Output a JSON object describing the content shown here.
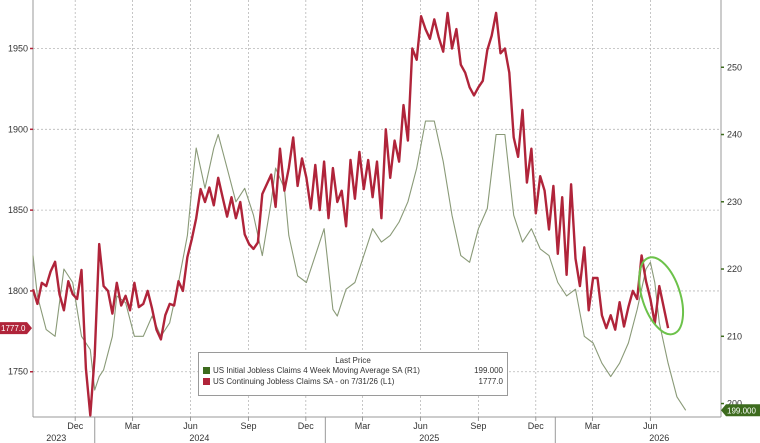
{
  "legend": {
    "title": "Last Price",
    "items": [
      {
        "label": "US Initial Jobless Claims 4 Week Moving Average SA  (R1)",
        "value": "199.000",
        "color": "#3d6b1e"
      },
      {
        "label": "US Continuing Jobless Claims SA -  on 7/31/26  (L1)",
        "value": "1777.0",
        "color": "#b0243a"
      }
    ]
  },
  "last_labels": {
    "left": "1777.0",
    "right": "199.000"
  },
  "chart_data": {
    "type": "line",
    "x_range": [
      "2023-09-25",
      "2026-09-21"
    ],
    "y_left": {
      "min": 1722,
      "max": 1980,
      "ticks": [
        1750,
        1800,
        1850,
        1900,
        1950
      ]
    },
    "y_right": {
      "min": 198,
      "max": 260,
      "ticks": [
        200,
        210,
        220,
        230,
        240,
        250
      ]
    },
    "x_ticks": [
      {
        "date": "2023-12-01",
        "label": "Dec"
      },
      {
        "date": "2024-03-01",
        "label": "Mar"
      },
      {
        "date": "2024-06-01",
        "label": "Jun"
      },
      {
        "date": "2024-09-01",
        "label": "Sep"
      },
      {
        "date": "2024-12-01",
        "label": "Dec"
      },
      {
        "date": "2025-03-01",
        "label": "Mar"
      },
      {
        "date": "2025-06-01",
        "label": "Jun"
      },
      {
        "date": "2025-09-01",
        "label": "Sep"
      },
      {
        "date": "2025-12-01",
        "label": "Dec"
      },
      {
        "date": "2026-03-01",
        "label": "Mar"
      },
      {
        "date": "2026-06-01",
        "label": "Jun"
      }
    ],
    "year_labels": [
      {
        "date": "2023-11-01",
        "label": "2023"
      },
      {
        "date": "2024-06-15",
        "label": "2024"
      },
      {
        "date": "2025-06-15",
        "label": "2025"
      },
      {
        "date": "2026-06-15",
        "label": "2026"
      }
    ],
    "series": [
      {
        "name": "US Continuing Jobless Claims SA",
        "axis": "left",
        "color": "#b0243a",
        "points": [
          [
            "2023-09-25",
            1801
          ],
          [
            "2023-10-02",
            1792
          ],
          [
            "2023-10-09",
            1805
          ],
          [
            "2023-10-16",
            1803
          ],
          [
            "2023-10-23",
            1812
          ],
          [
            "2023-10-30",
            1818
          ],
          [
            "2023-11-06",
            1798
          ],
          [
            "2023-11-13",
            1788
          ],
          [
            "2023-11-20",
            1806
          ],
          [
            "2023-11-27",
            1798
          ],
          [
            "2023-12-04",
            1795
          ],
          [
            "2023-12-11",
            1813
          ],
          [
            "2023-12-18",
            1752
          ],
          [
            "2023-12-25",
            1723
          ],
          [
            "2024-01-01",
            1760
          ],
          [
            "2024-01-08",
            1829
          ],
          [
            "2024-01-15",
            1803
          ],
          [
            "2024-01-22",
            1800
          ],
          [
            "2024-01-29",
            1786
          ],
          [
            "2024-02-05",
            1805
          ],
          [
            "2024-02-12",
            1791
          ],
          [
            "2024-02-19",
            1797
          ],
          [
            "2024-02-26",
            1788
          ],
          [
            "2024-03-04",
            1805
          ],
          [
            "2024-03-11",
            1790
          ],
          [
            "2024-03-18",
            1792
          ],
          [
            "2024-03-25",
            1800
          ],
          [
            "2024-04-01",
            1789
          ],
          [
            "2024-04-08",
            1776
          ],
          [
            "2024-04-15",
            1770
          ],
          [
            "2024-04-22",
            1785
          ],
          [
            "2024-04-29",
            1792
          ],
          [
            "2024-05-06",
            1791
          ],
          [
            "2024-05-13",
            1806
          ],
          [
            "2024-05-20",
            1800
          ],
          [
            "2024-05-27",
            1821
          ],
          [
            "2024-06-03",
            1832
          ],
          [
            "2024-06-10",
            1845
          ],
          [
            "2024-06-17",
            1863
          ],
          [
            "2024-06-24",
            1855
          ],
          [
            "2024-07-01",
            1864
          ],
          [
            "2024-07-08",
            1853
          ],
          [
            "2024-07-15",
            1870
          ],
          [
            "2024-07-22",
            1858
          ],
          [
            "2024-07-29",
            1846
          ],
          [
            "2024-08-05",
            1858
          ],
          [
            "2024-08-12",
            1845
          ],
          [
            "2024-08-19",
            1855
          ],
          [
            "2024-08-26",
            1835
          ],
          [
            "2024-09-02",
            1829
          ],
          [
            "2024-09-09",
            1826
          ],
          [
            "2024-09-16",
            1830
          ],
          [
            "2024-09-23",
            1860
          ],
          [
            "2024-10-07",
            1872
          ],
          [
            "2024-10-14",
            1852
          ],
          [
            "2024-10-21",
            1888
          ],
          [
            "2024-10-28",
            1862
          ],
          [
            "2024-11-04",
            1876
          ],
          [
            "2024-11-11",
            1895
          ],
          [
            "2024-11-18",
            1865
          ],
          [
            "2024-11-25",
            1882
          ],
          [
            "2024-12-02",
            1870
          ],
          [
            "2024-12-09",
            1851
          ],
          [
            "2024-12-16",
            1878
          ],
          [
            "2024-12-23",
            1850
          ],
          [
            "2024-12-30",
            1880
          ],
          [
            "2025-01-06",
            1845
          ],
          [
            "2025-01-13",
            1876
          ],
          [
            "2025-01-20",
            1855
          ],
          [
            "2025-01-27",
            1862
          ],
          [
            "2025-02-03",
            1840
          ],
          [
            "2025-02-10",
            1881
          ],
          [
            "2025-02-17",
            1857
          ],
          [
            "2025-02-24",
            1886
          ],
          [
            "2025-03-03",
            1863
          ],
          [
            "2025-03-10",
            1881
          ],
          [
            "2025-03-17",
            1858
          ],
          [
            "2025-03-24",
            1880
          ],
          [
            "2025-03-31",
            1845
          ],
          [
            "2025-04-07",
            1900
          ],
          [
            "2025-04-14",
            1870
          ],
          [
            "2025-04-21",
            1893
          ],
          [
            "2025-04-28",
            1880
          ],
          [
            "2025-05-05",
            1915
          ],
          [
            "2025-05-12",
            1893
          ],
          [
            "2025-05-19",
            1950
          ],
          [
            "2025-05-26",
            1943
          ],
          [
            "2025-06-02",
            1970
          ],
          [
            "2025-06-09",
            1962
          ],
          [
            "2025-06-16",
            1956
          ],
          [
            "2025-06-23",
            1968
          ],
          [
            "2025-06-30",
            1957
          ],
          [
            "2025-07-07",
            1948
          ],
          [
            "2025-07-14",
            1972
          ],
          [
            "2025-07-21",
            1950
          ],
          [
            "2025-07-28",
            1962
          ],
          [
            "2025-08-04",
            1940
          ],
          [
            "2025-08-11",
            1935
          ],
          [
            "2025-08-18",
            1926
          ],
          [
            "2025-08-25",
            1921
          ],
          [
            "2025-09-01",
            1926
          ],
          [
            "2025-09-08",
            1930
          ],
          [
            "2025-09-15",
            1949
          ],
          [
            "2025-09-22",
            1958
          ],
          [
            "2025-09-29",
            1972
          ],
          [
            "2025-10-06",
            1947
          ],
          [
            "2025-10-13",
            1950
          ],
          [
            "2025-10-20",
            1935
          ],
          [
            "2025-10-27",
            1895
          ],
          [
            "2025-11-03",
            1883
          ],
          [
            "2025-11-10",
            1912
          ],
          [
            "2025-11-17",
            1867
          ],
          [
            "2025-11-24",
            1888
          ],
          [
            "2025-12-01",
            1848
          ],
          [
            "2025-12-08",
            1871
          ],
          [
            "2025-12-15",
            1862
          ],
          [
            "2025-12-22",
            1838
          ],
          [
            "2025-12-29",
            1865
          ],
          [
            "2026-01-05",
            1823
          ],
          [
            "2026-01-12",
            1858
          ],
          [
            "2026-01-19",
            1810
          ],
          [
            "2026-01-26",
            1866
          ],
          [
            "2026-02-02",
            1820
          ],
          [
            "2026-02-09",
            1803
          ],
          [
            "2026-02-16",
            1827
          ],
          [
            "2026-02-23",
            1788
          ],
          [
            "2026-03-02",
            1808
          ],
          [
            "2026-03-09",
            1808
          ],
          [
            "2026-03-16",
            1785
          ],
          [
            "2026-03-23",
            1777
          ],
          [
            "2026-03-30",
            1785
          ],
          [
            "2026-04-06",
            1776
          ],
          [
            "2026-04-13",
            1793
          ],
          [
            "2026-04-20",
            1778
          ],
          [
            "2026-04-27",
            1790
          ],
          [
            "2026-05-04",
            1800
          ],
          [
            "2026-05-11",
            1795
          ],
          [
            "2026-05-18",
            1822
          ],
          [
            "2026-05-25",
            1806
          ],
          [
            "2026-06-01",
            1795
          ],
          [
            "2026-06-08",
            1780
          ],
          [
            "2026-06-15",
            1803
          ],
          [
            "2026-06-22",
            1790
          ],
          [
            "2026-06-29",
            1777
          ]
        ]
      },
      {
        "name": "US Initial Jobless Claims 4 Week Moving Average SA",
        "axis": "right",
        "color": "#8a9a78",
        "points": [
          [
            "2023-09-25",
            222
          ],
          [
            "2023-10-02",
            216
          ],
          [
            "2023-10-16",
            211
          ],
          [
            "2023-10-30",
            210
          ],
          [
            "2023-11-13",
            220
          ],
          [
            "2023-11-27",
            218
          ],
          [
            "2023-12-11",
            210
          ],
          [
            "2023-12-25",
            208
          ],
          [
            "2024-01-01",
            202
          ],
          [
            "2024-01-08",
            204
          ],
          [
            "2024-01-15",
            205
          ],
          [
            "2024-01-29",
            210
          ],
          [
            "2024-02-05",
            216
          ],
          [
            "2024-02-19",
            215
          ],
          [
            "2024-03-04",
            210
          ],
          [
            "2024-03-18",
            210
          ],
          [
            "2024-04-01",
            213
          ],
          [
            "2024-04-15",
            210
          ],
          [
            "2024-04-29",
            212
          ],
          [
            "2024-05-13",
            218
          ],
          [
            "2024-05-27",
            225
          ],
          [
            "2024-06-03",
            232
          ],
          [
            "2024-06-10",
            238
          ],
          [
            "2024-06-24",
            232
          ],
          [
            "2024-07-08",
            238
          ],
          [
            "2024-07-15",
            240
          ],
          [
            "2024-07-29",
            235
          ],
          [
            "2024-08-12",
            230
          ],
          [
            "2024-08-26",
            232
          ],
          [
            "2024-09-09",
            228
          ],
          [
            "2024-09-23",
            222
          ],
          [
            "2024-10-07",
            230
          ],
          [
            "2024-10-14",
            235
          ],
          [
            "2024-10-28",
            232
          ],
          [
            "2024-11-04",
            225
          ],
          [
            "2024-11-18",
            219
          ],
          [
            "2024-12-02",
            218
          ],
          [
            "2024-12-16",
            222
          ],
          [
            "2024-12-30",
            226
          ],
          [
            "2025-01-13",
            214
          ],
          [
            "2025-01-20",
            213
          ],
          [
            "2025-02-03",
            217
          ],
          [
            "2025-02-17",
            218
          ],
          [
            "2025-03-03",
            222
          ],
          [
            "2025-03-17",
            226
          ],
          [
            "2025-03-31",
            224
          ],
          [
            "2025-04-14",
            225
          ],
          [
            "2025-04-28",
            227
          ],
          [
            "2025-05-12",
            230
          ],
          [
            "2025-05-26",
            235
          ],
          [
            "2025-06-09",
            242
          ],
          [
            "2025-06-23",
            242
          ],
          [
            "2025-07-07",
            236
          ],
          [
            "2025-07-21",
            228
          ],
          [
            "2025-08-04",
            222
          ],
          [
            "2025-08-18",
            221
          ],
          [
            "2025-09-01",
            226
          ],
          [
            "2025-09-15",
            229
          ],
          [
            "2025-09-29",
            240
          ],
          [
            "2025-10-13",
            240
          ],
          [
            "2025-10-27",
            228
          ],
          [
            "2025-11-10",
            224
          ],
          [
            "2025-11-24",
            226
          ],
          [
            "2025-12-08",
            223
          ],
          [
            "2025-12-22",
            222
          ],
          [
            "2026-01-05",
            218
          ],
          [
            "2026-01-19",
            216
          ],
          [
            "2026-02-02",
            217
          ],
          [
            "2026-02-16",
            210
          ],
          [
            "2026-03-02",
            209
          ],
          [
            "2026-03-16",
            206
          ],
          [
            "2026-03-30",
            204
          ],
          [
            "2026-04-13",
            206
          ],
          [
            "2026-04-27",
            209
          ],
          [
            "2026-05-11",
            214
          ],
          [
            "2026-05-25",
            220
          ],
          [
            "2026-06-01",
            221
          ],
          [
            "2026-06-08",
            218
          ],
          [
            "2026-06-15",
            212
          ],
          [
            "2026-06-29",
            206
          ],
          [
            "2026-07-13",
            201
          ],
          [
            "2026-07-27",
            199
          ]
        ]
      }
    ],
    "annotations": [
      {
        "type": "ellipse",
        "color": "#6cc24a",
        "around": "latest values, 2026-06"
      }
    ]
  }
}
